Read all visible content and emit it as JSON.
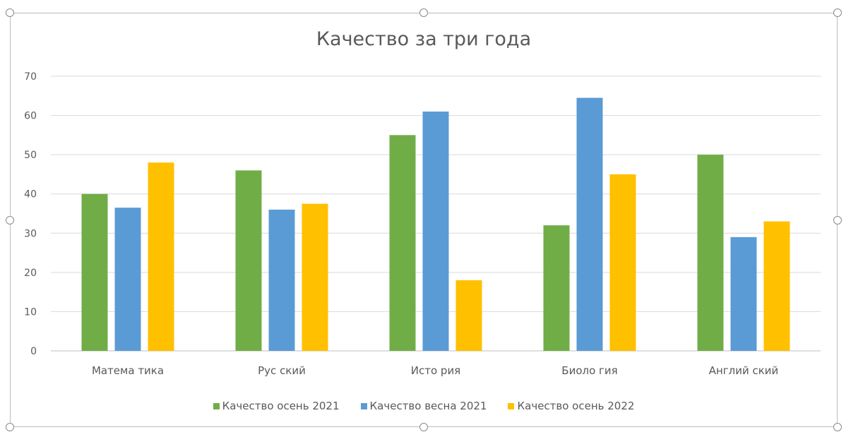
{
  "chart_data": {
    "type": "bar",
    "title": "Качество за три года",
    "categories": [
      "Матема тика",
      "Рус ский",
      "Исто рия",
      "Биоло гия",
      "Англий ский"
    ],
    "series": [
      {
        "name": "Качество осень 2021",
        "color": "#70ad47",
        "values": [
          40,
          46,
          55,
          32,
          50
        ]
      },
      {
        "name": "Качество весна 2021",
        "color": "#5b9bd5",
        "values": [
          36.5,
          36,
          61,
          64.5,
          29
        ]
      },
      {
        "name": "Качество осень 2022",
        "color": "#ffc000",
        "values": [
          48,
          37.5,
          18,
          45,
          33
        ]
      }
    ],
    "ylim": [
      0,
      70
    ],
    "yticks": [
      0,
      10,
      20,
      30,
      40,
      50,
      60,
      70
    ],
    "grid": true,
    "legend_position": "bottom"
  }
}
